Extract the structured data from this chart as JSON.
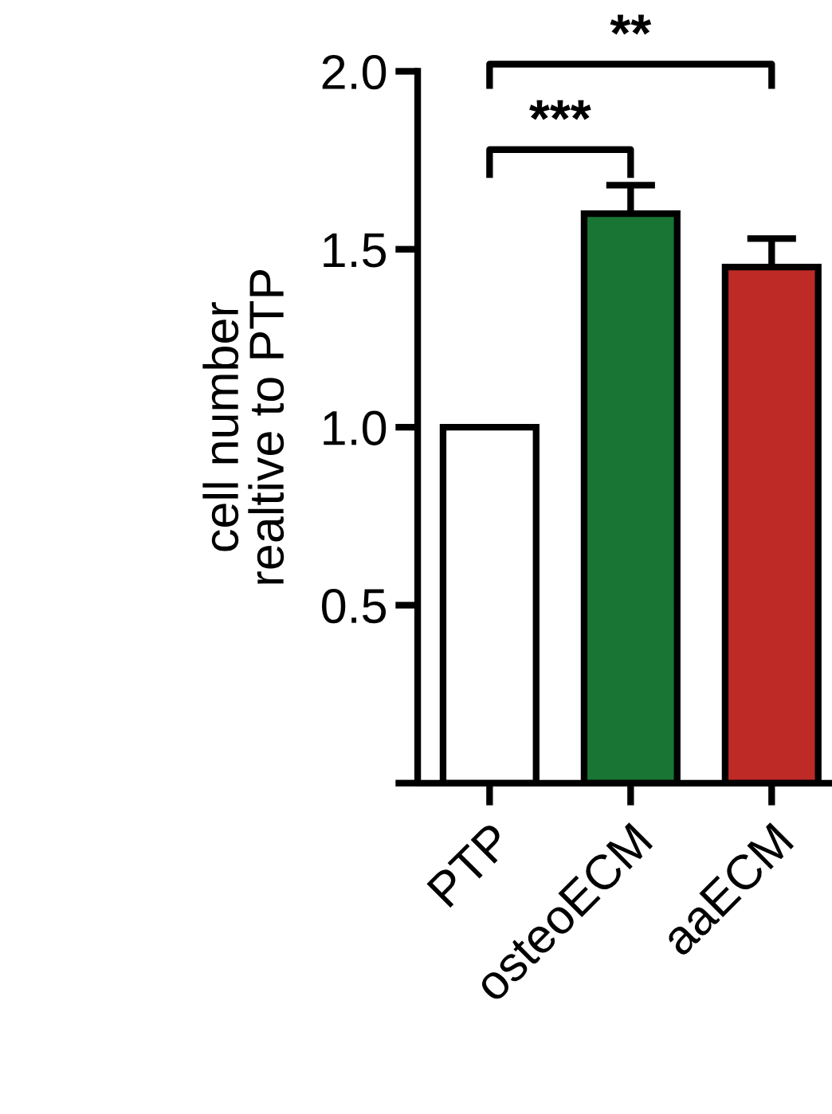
{
  "chart_data": {
    "type": "bar",
    "ylabel": "cell number\nrealtive to PTP",
    "categories": [
      "PTP",
      "osteoECM",
      "aaECM"
    ],
    "values": [
      1.0,
      1.6,
      1.45
    ],
    "colors": [
      "#ffffff",
      "#187534",
      "#be2a26"
    ],
    "errors": [
      null,
      0.08,
      0.08
    ],
    "ylim": [
      0,
      2.0
    ],
    "yticks": [
      {
        "value": 0,
        "label": null
      },
      0.5,
      {
        "value": 1.0,
        "label": "1.0"
      },
      1.5,
      {
        "value": 2.0,
        "label": "2.0"
      }
    ],
    "grid": false,
    "legend": false,
    "annotations": [
      "***",
      "**"
    ]
  }
}
